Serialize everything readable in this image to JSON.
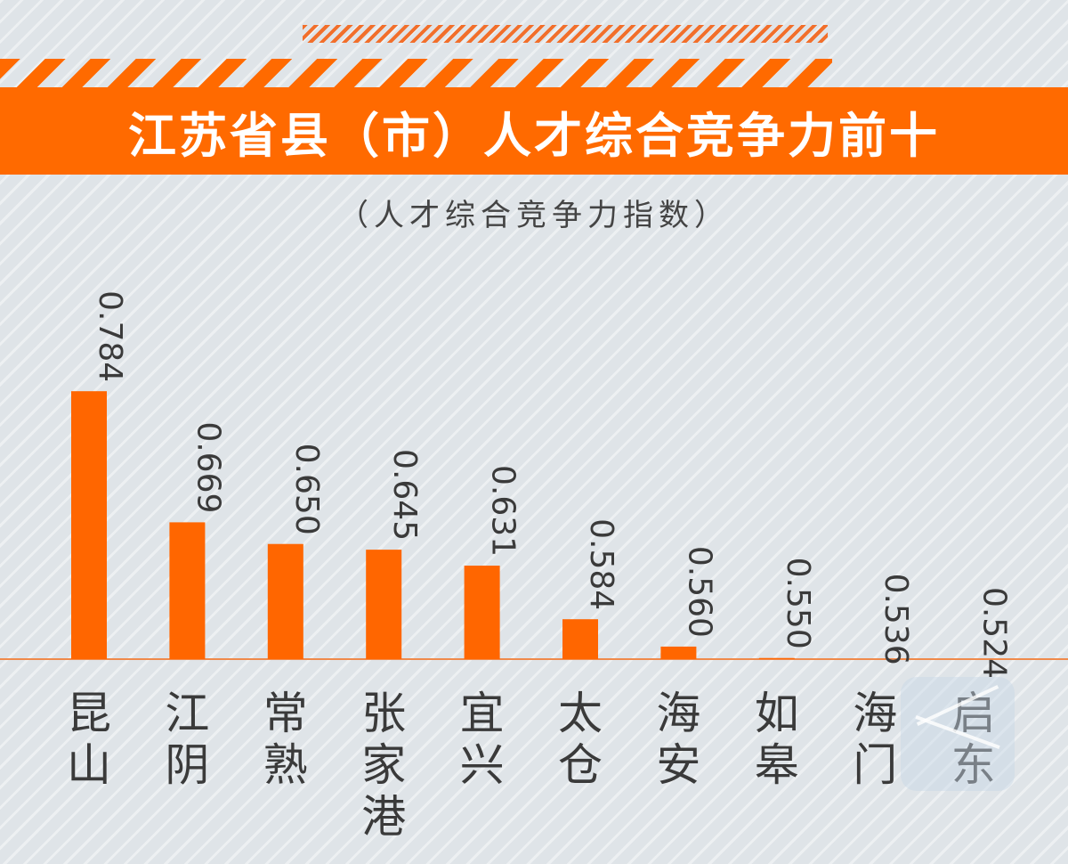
{
  "header": {
    "title": "江苏省县（市）人才综合竞争力前十",
    "subtitle": "（人才综合竞争力指数）"
  },
  "colors": {
    "accent": "#ff6a00",
    "bar": "#ff6600",
    "baseline": "#f08a4b",
    "label_text": "#3a3a3a",
    "background": "#dfe4e8"
  },
  "chart_data": {
    "type": "bar",
    "title": "江苏省县（市）人才综合竞争力前十",
    "subtitle": "（人才综合竞争力指数）",
    "categories": [
      "昆山",
      "江阴",
      "常熟",
      "张家港",
      "宜兴",
      "太仓",
      "海安",
      "如皋",
      "海门",
      "启东"
    ],
    "values": [
      0.784,
      0.669,
      0.65,
      0.645,
      0.631,
      0.584,
      0.56,
      0.55,
      0.536,
      0.524
    ],
    "value_labels": [
      "0.784",
      "0.669",
      "0.650",
      "0.645",
      "0.631",
      "0.584",
      "0.560",
      "0.550",
      "0.536",
      "0.524"
    ],
    "xlabel": "",
    "ylabel": "",
    "grid": false,
    "legend": "none"
  }
}
